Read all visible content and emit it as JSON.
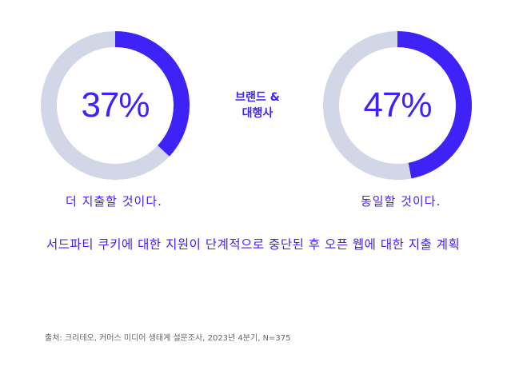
{
  "chart_data": [
    {
      "type": "pie",
      "values": [
        37,
        63
      ],
      "label": "37%",
      "caption": "더 지출할 것이다."
    },
    {
      "type": "pie",
      "values": [
        47,
        53
      ],
      "label": "47%",
      "caption": "동일할 것이다."
    }
  ],
  "center_label": [
    "브랜드 &",
    "대행사"
  ],
  "subtitle": "서드파티 쿠키에 대한 지원이 단계적으로 중단된 후 오픈 웹에 대한 지출 계획",
  "source": "출처: 크리테오, 커머스 미디어 생태계 설문조사, 2023년 4분기, N=375",
  "colors": {
    "accent": "#3e22f7",
    "track": "#d3d6e6"
  }
}
